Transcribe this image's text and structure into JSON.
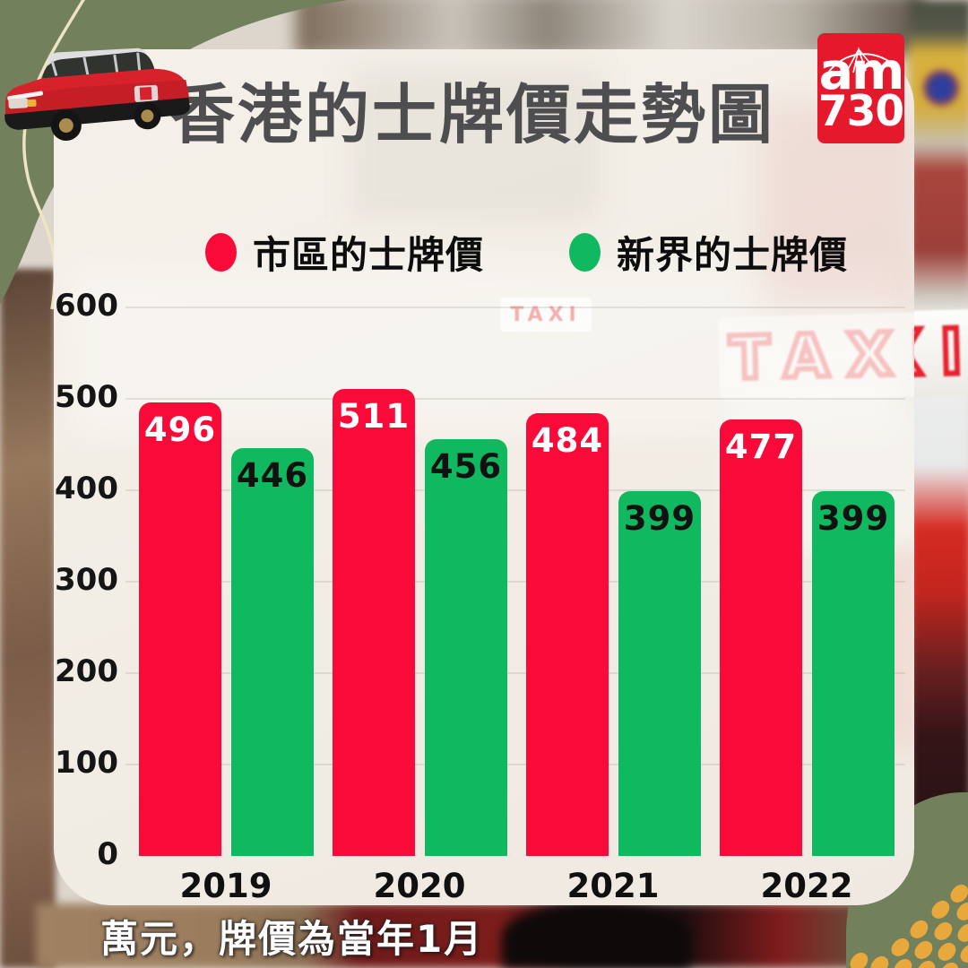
{
  "title": "香港的士牌價走勢圖",
  "logo": {
    "line1": "am",
    "line2": "730",
    "bg_color": "#e6182b"
  },
  "footnote": "萬元，牌價為當年1月",
  "photo": {
    "taxi_sign_text": "TAXI",
    "taxi_sign_small_text": "TAXI"
  },
  "colors": {
    "urban_red": "#fa0a38",
    "nt_green": "#10b95f",
    "frame_olive": "#72805c",
    "dots_orange": "#e9a83c",
    "title_gray": "#4e4e50",
    "card_cream": "#f2ede5"
  },
  "chart_data": {
    "type": "bar",
    "title": "香港的士牌價走勢圖",
    "categories": [
      "2019",
      "2020",
      "2021",
      "2022"
    ],
    "series": [
      {
        "name": "市區的士牌價",
        "color": "#fa0a38",
        "label_color": "#ffffff",
        "values": [
          496,
          511,
          484,
          477
        ]
      },
      {
        "name": "新界的士牌價",
        "color": "#10b95f",
        "label_color": "#111111",
        "values": [
          446,
          456,
          399,
          399
        ]
      }
    ],
    "xlabel": "",
    "ylabel": "",
    "ylim": [
      0,
      600
    ],
    "yticks": [
      0,
      100,
      200,
      300,
      400,
      500,
      600
    ],
    "grid": true,
    "legend_position": "top",
    "unit_note": "萬元，牌價為當年1月"
  }
}
